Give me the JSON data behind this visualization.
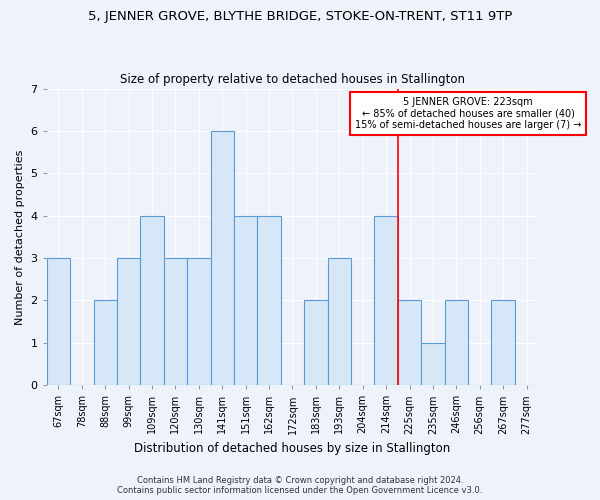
{
  "title1": "5, JENNER GROVE, BLYTHE BRIDGE, STOKE-ON-TRENT, ST11 9TP",
  "title2": "Size of property relative to detached houses in Stallington",
  "xlabel": "Distribution of detached houses by size in Stallington",
  "ylabel": "Number of detached properties",
  "categories": [
    "67sqm",
    "78sqm",
    "88sqm",
    "99sqm",
    "109sqm",
    "120sqm",
    "130sqm",
    "141sqm",
    "151sqm",
    "162sqm",
    "172sqm",
    "183sqm",
    "193sqm",
    "204sqm",
    "214sqm",
    "225sqm",
    "235sqm",
    "246sqm",
    "256sqm",
    "267sqm",
    "277sqm"
  ],
  "values": [
    3,
    0,
    2,
    3,
    4,
    3,
    3,
    6,
    4,
    4,
    0,
    2,
    3,
    0,
    4,
    2,
    1,
    2,
    0,
    2,
    0
  ],
  "bar_color": "#d6e8f7",
  "bar_edge_color": "#5b9bd5",
  "red_line_x": 14.5,
  "annotation_line1": "5 JENNER GROVE: 223sqm",
  "annotation_line2": "← 85% of detached houses are smaller (40)",
  "annotation_line3": "15% of semi-detached houses are larger (7) →",
  "ylim": [
    0,
    7
  ],
  "yticks": [
    0,
    1,
    2,
    3,
    4,
    5,
    6,
    7
  ],
  "footer1": "Contains HM Land Registry data © Crown copyright and database right 2024.",
  "footer2": "Contains public sector information licensed under the Open Government Licence v3.0.",
  "bg_color": "#eef2fb",
  "grid_color": "#ffffff",
  "title1_fontsize": 9.5,
  "title2_fontsize": 8.5,
  "xlabel_fontsize": 8.5,
  "ylabel_fontsize": 8.0
}
